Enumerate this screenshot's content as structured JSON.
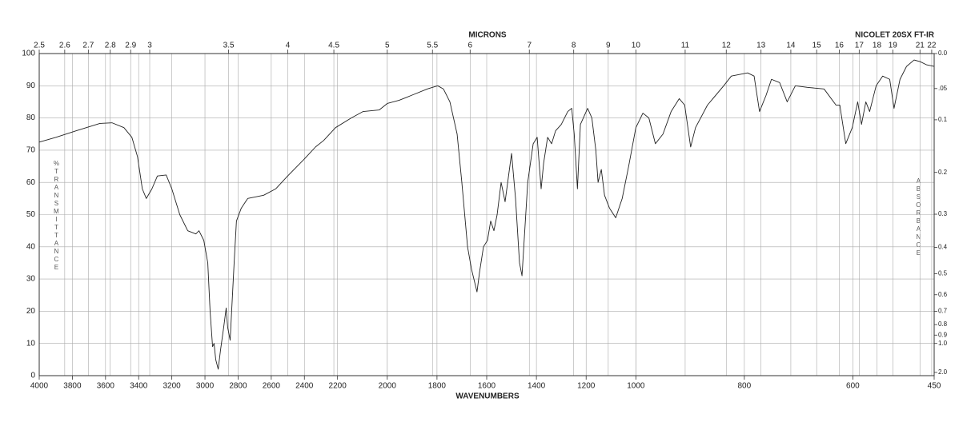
{
  "chart_data": {
    "type": "line",
    "title": "NICOLET 20SX FT-IR",
    "x_label": "WAVENUMBERS",
    "x2_label": "MICRONS",
    "y_label": "%TRANSMITTANCE",
    "y2_label": "ABSORBANCE",
    "color": "#222222",
    "grid": true,
    "xlim": [
      4000,
      450
    ],
    "x_scale_breaks": [
      2200,
      1000
    ],
    "xticks": [
      4000,
      3800,
      3600,
      3400,
      3200,
      3000,
      2800,
      2600,
      2400,
      2200,
      2000,
      1800,
      1600,
      1400,
      1200,
      1000,
      800,
      600,
      450
    ],
    "x2ticks": [
      2.5,
      2.6,
      2.7,
      2.8,
      2.9,
      3,
      3.5,
      4,
      4.5,
      5,
      5.5,
      6,
      7,
      8,
      9,
      10,
      11,
      12,
      13,
      14,
      15,
      16,
      17,
      18,
      19,
      21,
      22
    ],
    "ylim": [
      0,
      100
    ],
    "yticks": [
      0,
      10,
      20,
      30,
      40,
      50,
      60,
      70,
      80,
      90,
      100
    ],
    "y2ticks": [
      {
        "value": 0,
        "label": "0.0"
      },
      {
        "value": 0.05,
        "label": ".05"
      },
      0.1,
      0.2,
      0.3,
      0.4,
      0.5,
      0.6,
      0.7,
      0.8,
      0.9,
      {
        "value": 1,
        "label": "1.0"
      },
      {
        "value": 2,
        "label": "2.0"
      }
    ],
    "x": [
      4000,
      3899,
      3778,
      3634,
      3561,
      3489,
      3441,
      3407,
      3378,
      3354,
      3320,
      3287,
      3234,
      3200,
      3152,
      3104,
      3055,
      3036,
      3007,
      2983,
      2969,
      2954,
      2945,
      2935,
      2920,
      2906,
      2887,
      2872,
      2863,
      2848,
      2839,
      2824,
      2810,
      2781,
      2742,
      2694,
      2646,
      2573,
      2501,
      2405,
      2333,
      2284,
      2212,
      2145,
      2097,
      2032,
      2000,
      1952,
      1903,
      1839,
      1797,
      1774,
      1748,
      1719,
      1700,
      1677,
      1661,
      1639,
      1629,
      1613,
      1597,
      1584,
      1571,
      1558,
      1542,
      1526,
      1500,
      1484,
      1468,
      1458,
      1435,
      1413,
      1397,
      1381,
      1371,
      1355,
      1339,
      1323,
      1300,
      1274,
      1258,
      1248,
      1235,
      1223,
      1194,
      1177,
      1161,
      1152,
      1139,
      1126,
      1106,
      1081,
      1055,
      1029,
      1000,
      987,
      976,
      964,
      950,
      935,
      920,
      910,
      899,
      890,
      868,
      838,
      824,
      794,
      782,
      772,
      760,
      750,
      735,
      721,
      706,
      684,
      653,
      631,
      624,
      613,
      601,
      591,
      584,
      576,
      569,
      557,
      545,
      532,
      524,
      513,
      501,
      487,
      476,
      464,
      450
    ],
    "values": [
      72.5,
      74,
      76,
      78.3,
      78.5,
      77,
      74,
      68,
      58,
      55,
      58,
      62,
      62.3,
      58,
      50,
      45,
      44,
      45,
      42,
      35,
      20,
      9,
      10,
      5,
      2,
      8,
      15,
      21,
      15,
      11,
      20,
      35,
      48,
      52,
      55,
      55.5,
      56,
      58,
      62,
      67,
      71,
      73,
      77,
      80,
      82,
      82.5,
      84.5,
      85.5,
      87,
      89,
      90,
      89,
      85,
      75,
      60,
      40,
      33,
      26,
      32,
      40,
      42,
      48,
      45,
      50,
      60,
      54,
      69,
      55,
      35,
      31,
      60,
      72,
      74,
      58,
      66,
      74,
      72,
      76,
      78,
      82,
      83,
      75,
      58,
      78,
      83,
      80,
      70,
      60,
      64,
      56,
      52,
      49,
      55,
      65,
      77,
      81.5,
      80,
      72,
      75,
      82,
      86,
      84,
      71,
      77,
      84,
      90,
      93,
      94,
      93,
      82,
      87,
      92,
      91,
      85,
      90,
      89.5,
      89,
      84,
      84,
      72,
      77,
      85,
      78,
      85,
      82,
      90,
      93,
      92,
      83,
      92,
      96,
      98,
      97.5,
      96.5,
      96
    ]
  }
}
